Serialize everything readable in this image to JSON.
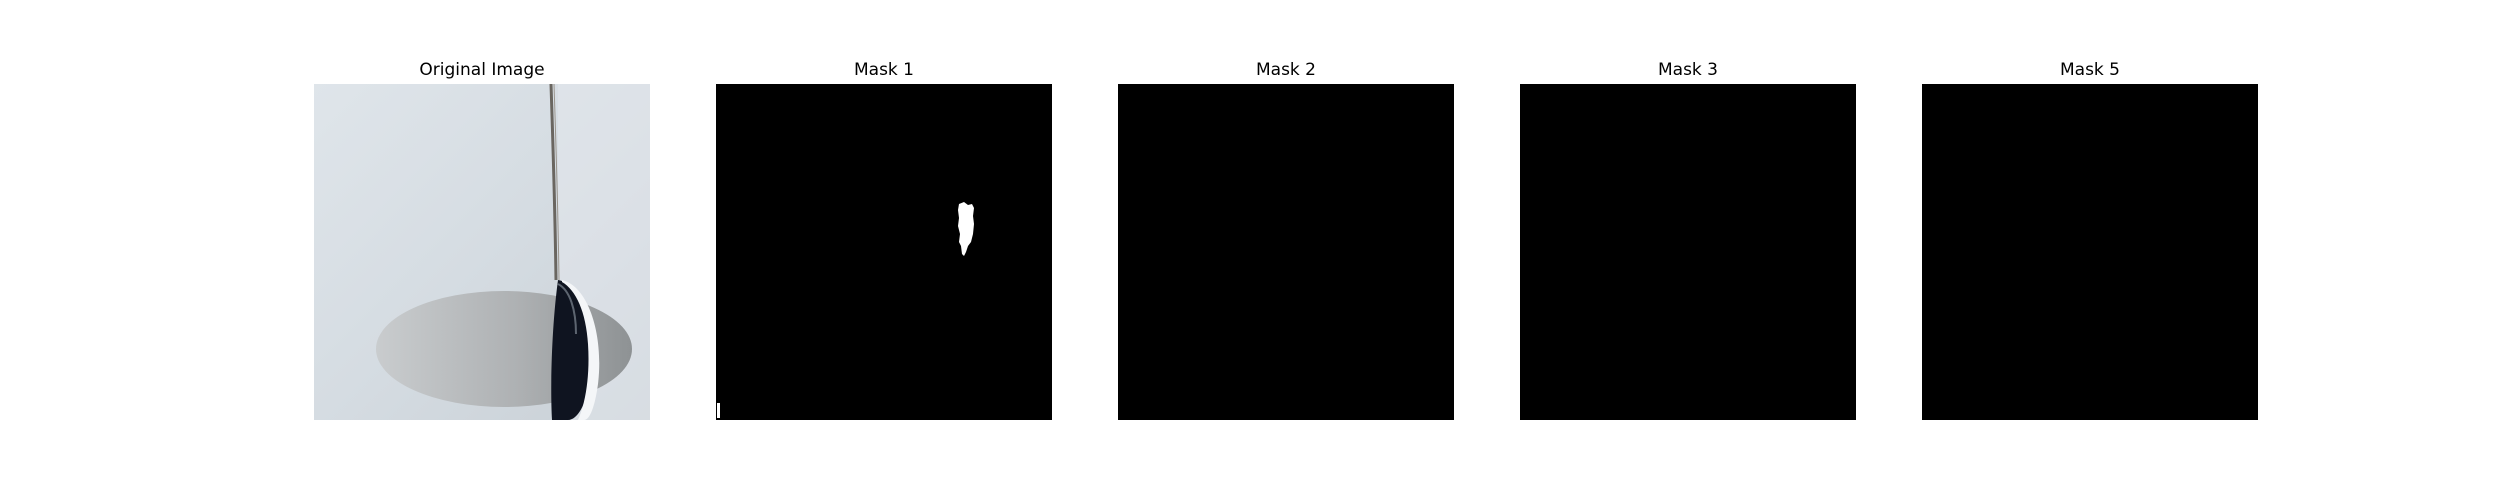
{
  "panels": [
    {
      "title": "Original Image",
      "kind": "photo"
    },
    {
      "title": "Mask 1",
      "kind": "mask"
    },
    {
      "title": "Mask 2",
      "kind": "mask"
    },
    {
      "title": "Mask 3",
      "kind": "mask"
    },
    {
      "title": "Mask 5",
      "kind": "mask"
    }
  ],
  "colors": {
    "background": "#ffffff",
    "mask_background": "#000000",
    "mask_foreground": "#ffffff",
    "photo_wall": "#d6dde3",
    "photo_dark_region": "#0f1420"
  }
}
